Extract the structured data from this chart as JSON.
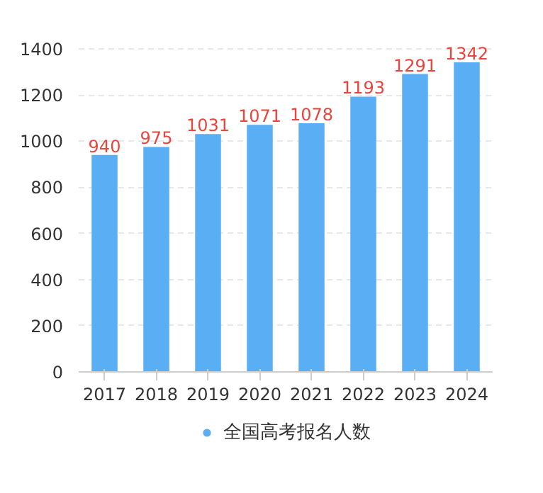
{
  "chart_data": {
    "type": "bar",
    "categories": [
      "2017",
      "2018",
      "2019",
      "2020",
      "2021",
      "2022",
      "2023",
      "2024"
    ],
    "series": [
      {
        "name": "全国高考报名人数",
        "color": "#5aaef3",
        "values": [
          940,
          975,
          1031,
          1071,
          1078,
          1193,
          1291,
          1342
        ]
      }
    ],
    "ylim": [
      0,
      1400
    ],
    "yticks": [
      0,
      200,
      400,
      600,
      800,
      1000,
      1200,
      1400
    ],
    "grid": "y",
    "data_labels": true,
    "legend": "bottom"
  }
}
